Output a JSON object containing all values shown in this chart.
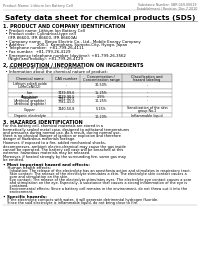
{
  "header_left": "Product Name: Lithium Ion Battery Cell",
  "header_right_line1": "Substance Number: SBR-049-00619",
  "header_right_line2": "Establishment / Revision: Dec.7.2010",
  "title": "Safety data sheet for chemical products (SDS)",
  "s1_title": "1. PRODUCT AND COMPANY IDENTIFICATION",
  "s1_lines": [
    "  • Product name: Lithium Ion Battery Cell",
    "  • Product code: Cylindrical-type cell",
    "    (IFR 86600, IFR 86600, IFR 86600A)",
    "  • Company name:   Benzo Electric Co., Ltd., Mobile Energy Company",
    "  • Address:         200-1  Kamiohara, Sumoto-City, Hyogo, Japan",
    "  • Telephone number:  +81-799-26-4111",
    "  • Fax number:  +81-799-26-4129",
    "  • Emergency telephone number (daytime): +81-799-26-3562",
    "    (Night and holiday): +81-799-26-4129"
  ],
  "s2_title": "2. COMPOSITION / INFORMATION ON INGREDIENTS",
  "s2_line1": "  • Substance or preparation: Preparation",
  "s2_line2": "  • Information about the chemical nature of product:",
  "tbl_h": [
    "Chemical name",
    "CAS number",
    "Concentration /\nConcentration range",
    "Classification and\nhazard labeling"
  ],
  "tbl_rows": [
    [
      "Lithium cobalt oxide\n(LiMnCoNiO2)",
      "-",
      "30-50%",
      "-"
    ],
    [
      "Iron",
      "7439-89-6",
      "15-25%",
      "-"
    ],
    [
      "Aluminium",
      "7429-90-5",
      "2-5%",
      "-"
    ],
    [
      "Graphite\n(Artificial graphite)\n(Artificial graphite)",
      "7782-42-5\n7782-43-0",
      "10-25%",
      "-"
    ],
    [
      "Copper",
      "7440-50-8",
      "5-15%",
      "Sensitization of the skin\ngroup No.2"
    ],
    [
      "Organic electrolyte",
      "-",
      "10-20%",
      "Inflammable liquid"
    ]
  ],
  "s3_title": "3. HAZARDS IDENTIFICATION",
  "s3_paras": [
    "For this battery cell, chemical materials are stored in a hermetically sealed metal case, designed to withstand temperatures and pressures during normal use. As a result, during normal use, there is no physical danger of ignition or explosion and therefore danger of hazardous materials leakage.",
    "However, if exposed to a fire, added mechanical shocks, decompresses, ambient electro-chemical may cause the gas inside cannot be operated. The battery cell case will be breached at this extreme. hazardous materials may be released.",
    "Moreover, if heated strongly by the surrounding fire, some gas may be emitted."
  ],
  "s3_bullet1": "• Most important hazard and effects:",
  "s3_human_title": "  Human health effects:",
  "s3_human": [
    "    Inhalation: The release of the electrolyte has an anesthesia action and stimulates in respiratory tract.",
    "    Skin contact: The release of the electrolyte stimulates a skin. The electrolyte skin contact causes a",
    "    sore and stimulation on the skin.",
    "    Eye contact: The release of the electrolyte stimulates eyes. The electrolyte eye contact causes a sore",
    "    and stimulation on the eye. Especially, a substance that causes a strong inflammation of the eye is",
    "    contained.",
    "    Environmental effects: Since a battery cell remains in the environment, do not throw out it into the",
    "    environment."
  ],
  "s3_specific_title": "• Specific hazards:",
  "s3_specific": [
    "  If the electrolyte contacts with water, it will generate detrimental hydrogen fluoride.",
    "  Since the said electrolyte is inflammable liquid, do not bring close to fire."
  ]
}
